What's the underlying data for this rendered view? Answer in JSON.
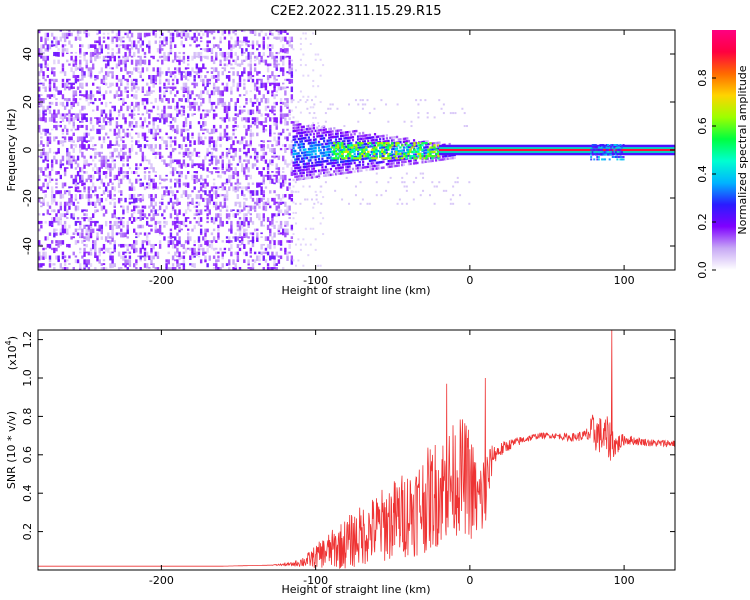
{
  "title": "C2E2.2022.311.15.29.R15",
  "chart_data": [
    {
      "type": "heatmap",
      "title": "",
      "xlabel": "Height of straight line (km)",
      "ylabel": "Frequency (Hz)",
      "xlim": [
        -280,
        133
      ],
      "ylim": [
        -50,
        50
      ],
      "x_ticks": [
        "-200",
        "-100",
        "0",
        "100"
      ],
      "x_tick_values": [
        -200,
        -100,
        0,
        100
      ],
      "y_ticks": [
        "-40",
        "-20",
        "0",
        "20",
        "40"
      ],
      "y_tick_values": [
        -40,
        -20,
        0,
        20,
        40
      ],
      "colorbar": {
        "label": "Normalized spectral amplitude",
        "range": [
          0,
          1
        ],
        "ticks": [
          "0.0",
          "0.2",
          "0.4",
          "0.6",
          "0.8"
        ],
        "tick_values": [
          0.0,
          0.2,
          0.4,
          0.6,
          0.8
        ],
        "colors": [
          "#ffffff",
          "#c7a8f5",
          "#7f00ff",
          "#2a1cff",
          "#00b4ff",
          "#00ffd0",
          "#00ff40",
          "#9dff00",
          "#ffd400",
          "#ff6a00",
          "#ff0040",
          "#ff0080"
        ]
      },
      "regions": [
        {
          "x_range": [
            -280,
            -115
          ],
          "y_range": [
            -50,
            50
          ],
          "amplitude": 0.08,
          "texture": "noise"
        },
        {
          "x_range": [
            -115,
            -20
          ],
          "y_range": [
            -12,
            12
          ],
          "amplitude": 0.25,
          "texture": "blob"
        },
        {
          "x_range": [
            -90,
            -20
          ],
          "y_range": [
            -3,
            4
          ],
          "amplitude": 0.45,
          "texture": "core"
        },
        {
          "x_range": [
            -20,
            133
          ],
          "y_range": [
            -1,
            1
          ],
          "amplitude": 0.9,
          "texture": "line"
        }
      ]
    },
    {
      "type": "line",
      "title": "",
      "xlabel": "Height of straight line (km)",
      "ylabel": "SNR (10 * v/v)",
      "y_multiplier_label": "(x10",
      "y_multiplier_exp": "4",
      "y_multiplier_close": ")",
      "xlim": [
        -280,
        133
      ],
      "ylim": [
        0,
        1.25
      ],
      "x_ticks": [
        "-200",
        "-100",
        "0",
        "100"
      ],
      "x_tick_values": [
        -200,
        -100,
        0,
        100
      ],
      "y_ticks": [
        "0.2",
        "0.4",
        "0.6",
        "0.8",
        "1.0",
        "1.2"
      ],
      "y_tick_values": [
        0.2,
        0.4,
        0.6,
        0.8,
        1.0,
        1.2
      ],
      "series": [
        {
          "color": "#ee3333",
          "x": [
            -280,
            -250,
            -220,
            -190,
            -160,
            -130,
            -115,
            -105,
            -95,
            -85,
            -75,
            -65,
            -55,
            -45,
            -35,
            -25,
            -15,
            -5,
            0,
            5,
            10,
            15,
            25,
            35,
            45,
            55,
            65,
            75,
            80,
            85,
            90,
            95,
            100,
            110,
            120,
            133
          ],
          "y": [
            0.02,
            0.02,
            0.02,
            0.02,
            0.02,
            0.025,
            0.03,
            0.05,
            0.09,
            0.12,
            0.16,
            0.2,
            0.24,
            0.28,
            0.32,
            0.38,
            0.44,
            0.5,
            0.45,
            0.35,
            0.4,
            0.6,
            0.65,
            0.68,
            0.7,
            0.7,
            0.69,
            0.7,
            0.72,
            0.7,
            0.68,
            0.65,
            0.68,
            0.67,
            0.66,
            0.66
          ],
          "noise_amplitude": [
            0.0,
            0.0,
            0.0,
            0.0,
            0.0,
            0.0,
            0.01,
            0.04,
            0.08,
            0.12,
            0.15,
            0.17,
            0.2,
            0.22,
            0.25,
            0.28,
            0.3,
            0.3,
            0.3,
            0.2,
            0.25,
            0.05,
            0.03,
            0.02,
            0.015,
            0.015,
            0.02,
            0.03,
            0.1,
            0.1,
            0.12,
            0.06,
            0.03,
            0.02,
            0.02,
            0.02
          ],
          "spikes": [
            {
              "x": 10,
              "y": 1.0
            },
            {
              "x": 92,
              "y": 1.25
            },
            {
              "x": -15,
              "y": 0.97
            }
          ]
        }
      ]
    }
  ]
}
